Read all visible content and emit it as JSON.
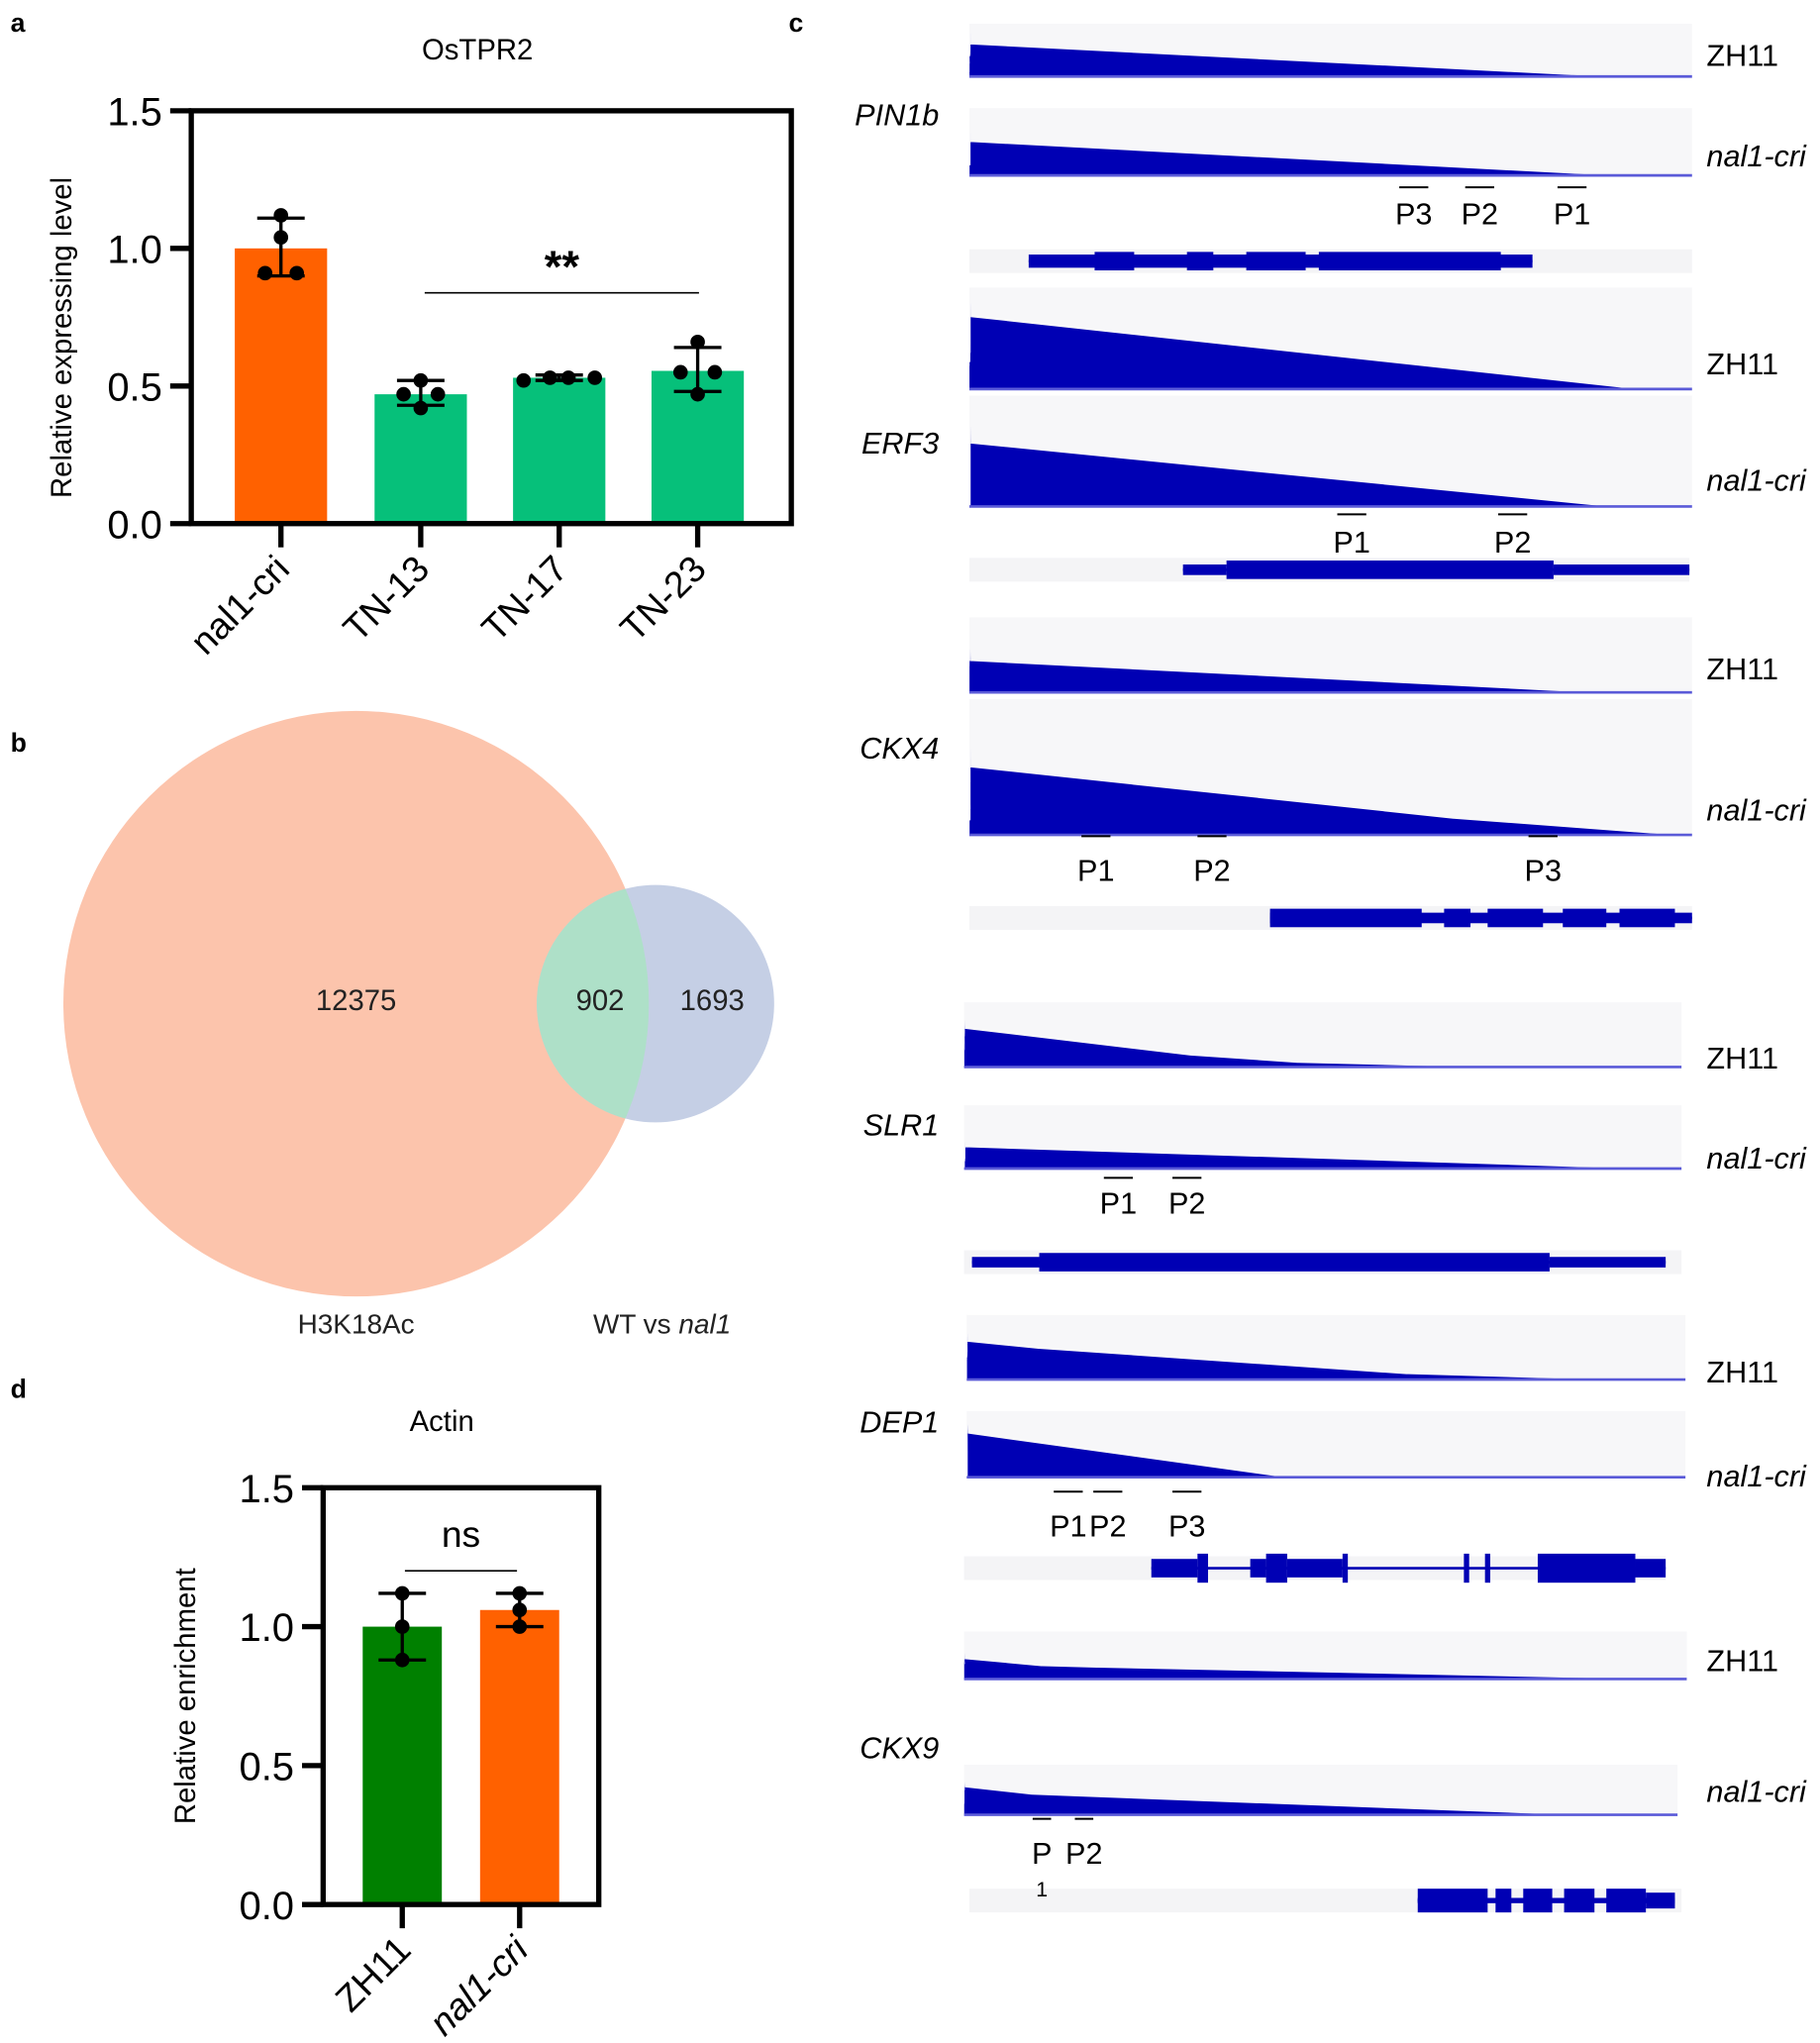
{
  "panel_labels": {
    "a": "a",
    "b": "b",
    "c": "c",
    "d": "d"
  },
  "chart_data": [
    {
      "panel": "a",
      "type": "bar",
      "title": "OsTPR2",
      "ylabel": "Relative expressing level",
      "xlabel": "",
      "ylim": [
        0,
        1.5
      ],
      "yticks": [
        "0.0",
        "0.5",
        "1.0",
        "1.5"
      ],
      "categories": [
        "nal1-cri",
        "TN-13",
        "TN-17",
        "TN-23"
      ],
      "values": [
        1.0,
        0.47,
        0.53,
        0.555
      ],
      "error": [
        [
          0.9,
          1.11
        ],
        [
          0.43,
          0.52
        ],
        [
          0.52,
          0.54
        ],
        [
          0.48,
          0.64
        ]
      ],
      "points": [
        [
          1.12,
          1.04,
          0.91,
          0.91
        ],
        [
          0.52,
          0.47,
          0.47,
          0.42
        ],
        [
          0.52,
          0.53,
          0.53,
          0.53
        ],
        [
          0.66,
          0.55,
          0.55,
          0.47
        ]
      ],
      "colors": [
        "#ff6100",
        "#06c07a",
        "#06c07a",
        "#06c07a"
      ],
      "significance": {
        "label": "**",
        "from": "TN-13",
        "to": "TN-23"
      }
    },
    {
      "panel": "d",
      "type": "bar",
      "title": "Actin",
      "ylabel": "Relative enrichment",
      "xlabel": "",
      "ylim": [
        0,
        1.5
      ],
      "yticks": [
        "0.0",
        "0.5",
        "1.0",
        "1.5"
      ],
      "categories": [
        "ZH11",
        "nal1-cri"
      ],
      "values": [
        1.0,
        1.06
      ],
      "error": [
        [
          0.88,
          1.12
        ],
        [
          1.0,
          1.12
        ]
      ],
      "points": [
        [
          1.12,
          1.0,
          0.88
        ],
        [
          1.12,
          1.06,
          1.0
        ]
      ],
      "colors": [
        "#008000",
        "#ff6100"
      ],
      "significance": {
        "label": "ns",
        "from": "ZH11",
        "to": "nal1-cri"
      }
    }
  ],
  "venn": {
    "sets": [
      {
        "label": "H3K18Ac",
        "only": "12375",
        "color": "#fcc4ac"
      },
      {
        "label_prefix": "WT vs ",
        "label_italic": "nal1",
        "only": "1693",
        "color": "#c5cfe5"
      }
    ],
    "overlap": "902",
    "overlap_color": "#aee0c8"
  },
  "tracks": {
    "color": "#0000b4",
    "sample_labels": [
      "ZH11",
      "nal1-cri"
    ],
    "genes": [
      {
        "name": "PIN1b",
        "primers": [
          "P3",
          "P2",
          "P1"
        ]
      },
      {
        "name": "ERF3",
        "primers": [
          "P1",
          "P2"
        ]
      },
      {
        "name": "CKX4",
        "primers": [
          "P1",
          "P2",
          "P3"
        ]
      },
      {
        "name": "SLR1",
        "primers": [
          "P1",
          "P2"
        ]
      },
      {
        "name": "DEP1",
        "primers": [
          "P1",
          "P2",
          "P3"
        ]
      },
      {
        "name": "CKX9",
        "primers": [
          "P",
          "P2",
          "1"
        ]
      }
    ]
  }
}
